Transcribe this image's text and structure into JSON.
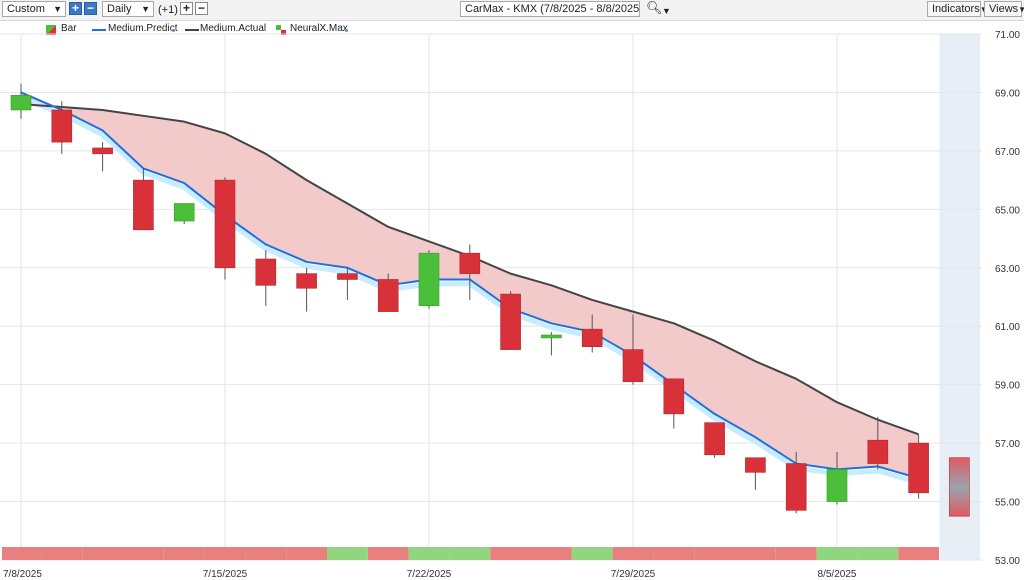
{
  "toolbar": {
    "range_select": "Custom",
    "period_select": "Daily",
    "offset_label": "(+1)",
    "symbol_title": "CarMax - KMX (7/8/2025 - 8/8/2025)",
    "indicators_label": "Indicators",
    "views_label": "Views"
  },
  "legend": {
    "bar": "Bar",
    "predict": "Medium.Predict",
    "actual": "Medium.Actual",
    "neuralx": "NeuralX.Max"
  },
  "colors": {
    "up": "#4cbf3a",
    "down": "#d9313a",
    "predict_line": "#1f6fe0",
    "actual_line": "#444444",
    "band_fill": "#f3caca",
    "strip_up": "#8fd67e",
    "strip_down": "#e88080",
    "forecast_bg": "#e8eef6"
  },
  "chart_data": {
    "type": "candlestick",
    "title": "CarMax - KMX (7/8/2025 - 8/8/2025)",
    "ylim": [
      53.0,
      71.0
    ],
    "y_ticks": [
      "71.00",
      "69.00",
      "67.00",
      "65.00",
      "63.00",
      "61.00",
      "59.00",
      "57.00",
      "55.00",
      "53.00"
    ],
    "x_labels": [
      {
        "index": 0,
        "label": "7/8/2025"
      },
      {
        "index": 5,
        "label": "7/15/2025"
      },
      {
        "index": 10,
        "label": "7/22/2025"
      },
      {
        "index": 15,
        "label": "7/29/2025"
      },
      {
        "index": 20,
        "label": "8/5/2025"
      }
    ],
    "candles": [
      {
        "open": 68.4,
        "high": 69.3,
        "low": 68.1,
        "close": 68.9
      },
      {
        "open": 68.4,
        "high": 68.7,
        "low": 66.9,
        "close": 67.3
      },
      {
        "open": 67.1,
        "high": 67.3,
        "low": 66.3,
        "close": 66.9
      },
      {
        "open": 66.0,
        "high": 66.4,
        "low": 64.3,
        "close": 64.3
      },
      {
        "open": 64.6,
        "high": 65.2,
        "low": 64.5,
        "close": 65.2
      },
      {
        "open": 66.0,
        "high": 66.1,
        "low": 62.6,
        "close": 63.0
      },
      {
        "open": 63.3,
        "high": 63.6,
        "low": 61.7,
        "close": 62.4
      },
      {
        "open": 62.8,
        "high": 63.0,
        "low": 61.5,
        "close": 62.3
      },
      {
        "open": 62.8,
        "high": 63.0,
        "low": 61.9,
        "close": 62.6
      },
      {
        "open": 62.6,
        "high": 62.8,
        "low": 61.5,
        "close": 61.5
      },
      {
        "open": 61.7,
        "high": 63.6,
        "low": 61.6,
        "close": 63.5
      },
      {
        "open": 63.5,
        "high": 63.8,
        "low": 61.9,
        "close": 62.8
      },
      {
        "open": 62.1,
        "high": 62.2,
        "low": 60.2,
        "close": 60.2
      },
      {
        "open": 60.6,
        "high": 60.8,
        "low": 60.0,
        "close": 60.7
      },
      {
        "open": 60.9,
        "high": 61.4,
        "low": 60.1,
        "close": 60.3
      },
      {
        "open": 60.2,
        "high": 61.4,
        "low": 59.0,
        "close": 59.1
      },
      {
        "open": 59.2,
        "high": 59.2,
        "low": 57.5,
        "close": 58.0
      },
      {
        "open": 57.7,
        "high": 57.7,
        "low": 56.5,
        "close": 56.6
      },
      {
        "open": 56.5,
        "high": 56.5,
        "low": 55.4,
        "close": 56.0
      },
      {
        "open": 56.3,
        "high": 56.7,
        "low": 54.6,
        "close": 54.7
      },
      {
        "open": 55.0,
        "high": 56.7,
        "low": 54.9,
        "close": 56.1
      },
      {
        "open": 57.1,
        "high": 57.9,
        "low": 56.1,
        "close": 56.3
      },
      {
        "open": 57.0,
        "high": 57.3,
        "low": 55.1,
        "close": 55.3
      }
    ],
    "series": [
      {
        "name": "Medium.Predict",
        "values": [
          69.0,
          68.4,
          67.7,
          66.4,
          65.9,
          64.8,
          63.8,
          63.2,
          63.0,
          62.4,
          62.6,
          62.6,
          61.6,
          61.1,
          60.8,
          60.0,
          59.0,
          58.0,
          57.2,
          56.3,
          56.1,
          56.2,
          55.8
        ]
      },
      {
        "name": "Medium.Actual",
        "values": [
          68.6,
          68.5,
          68.4,
          68.2,
          68.0,
          67.6,
          66.9,
          66.0,
          65.2,
          64.4,
          63.9,
          63.4,
          62.8,
          62.4,
          61.9,
          61.5,
          61.1,
          60.5,
          59.8,
          59.2,
          58.4,
          57.8,
          57.3
        ]
      }
    ],
    "forecast": {
      "high": 56.5,
      "low": 54.5
    },
    "signal_strip": [
      "down",
      "down",
      "down",
      "down",
      "down",
      "down",
      "down",
      "down",
      "up",
      "down",
      "up",
      "up",
      "down",
      "down",
      "up",
      "down",
      "down",
      "down",
      "down",
      "down",
      "up",
      "up",
      "down"
    ]
  }
}
